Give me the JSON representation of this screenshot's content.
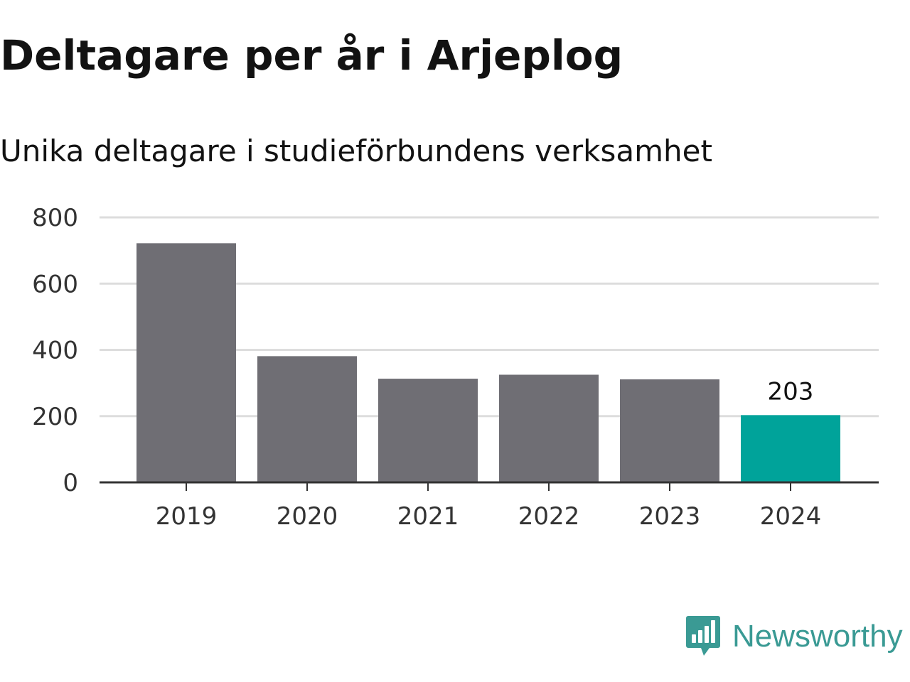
{
  "header": {
    "title": "Deltagare per år i Arjeplog",
    "subtitle": "Unika deltagare i studieförbundens verksamhet"
  },
  "brand": {
    "name": "Newsworthy",
    "color": "#3a9a94",
    "icon": "newsworthy-logo-icon"
  },
  "colors": {
    "bar": "#6f6e74",
    "highlight": "#00a39a",
    "grid": "#dddddd",
    "axis": "#333333"
  },
  "chart_data": {
    "type": "bar",
    "categories": [
      "2019",
      "2020",
      "2021",
      "2022",
      "2023",
      "2024"
    ],
    "values": [
      722,
      381,
      313,
      325,
      311,
      203
    ],
    "highlight_index": 5,
    "data_labels": [
      null,
      null,
      null,
      null,
      null,
      "203"
    ],
    "title": "Deltagare per år i Arjeplog",
    "subtitle": "Unika deltagare i studieförbundens verksamhet",
    "xlabel": "",
    "ylabel": "",
    "ylim": [
      0,
      800
    ],
    "yticks": [
      0,
      200,
      400,
      600,
      800
    ],
    "grid": true,
    "legend": "none"
  }
}
